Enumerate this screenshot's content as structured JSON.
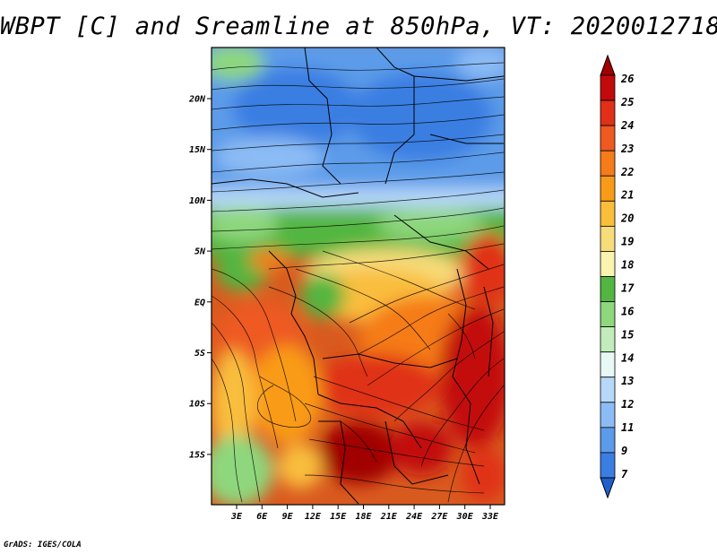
{
  "title": "WBPT [C] and Sreamline at 850hPa, VT: 2020012718",
  "credit": "GrADS: IGES/COLA",
  "map": {
    "lat_labels": [
      "20N",
      "15N",
      "10N",
      "5N",
      "EQ",
      "5S",
      "10S",
      "15S"
    ],
    "lon_labels": [
      "3E",
      "6E",
      "9E",
      "12E",
      "15E",
      "18E",
      "21E",
      "24E",
      "27E",
      "30E",
      "33E"
    ]
  },
  "colorbar": {
    "levels": [
      "26",
      "25",
      "24",
      "23",
      "22",
      "21",
      "20",
      "19",
      "18",
      "17",
      "16",
      "15",
      "14",
      "13",
      "12",
      "11",
      "9",
      "7"
    ],
    "colors": [
      "#a00000",
      "#c30a0a",
      "#e03018",
      "#ee5a20",
      "#f57c18",
      "#f99b18",
      "#f9be3c",
      "#f7dc7a",
      "#fbf3b0",
      "#52b640",
      "#8ed77d",
      "#c2ecbb",
      "#e8f8f6",
      "#b8d8fa",
      "#8cbcf5",
      "#5c9be9",
      "#3b7ee2",
      "#1e60cc"
    ]
  }
}
